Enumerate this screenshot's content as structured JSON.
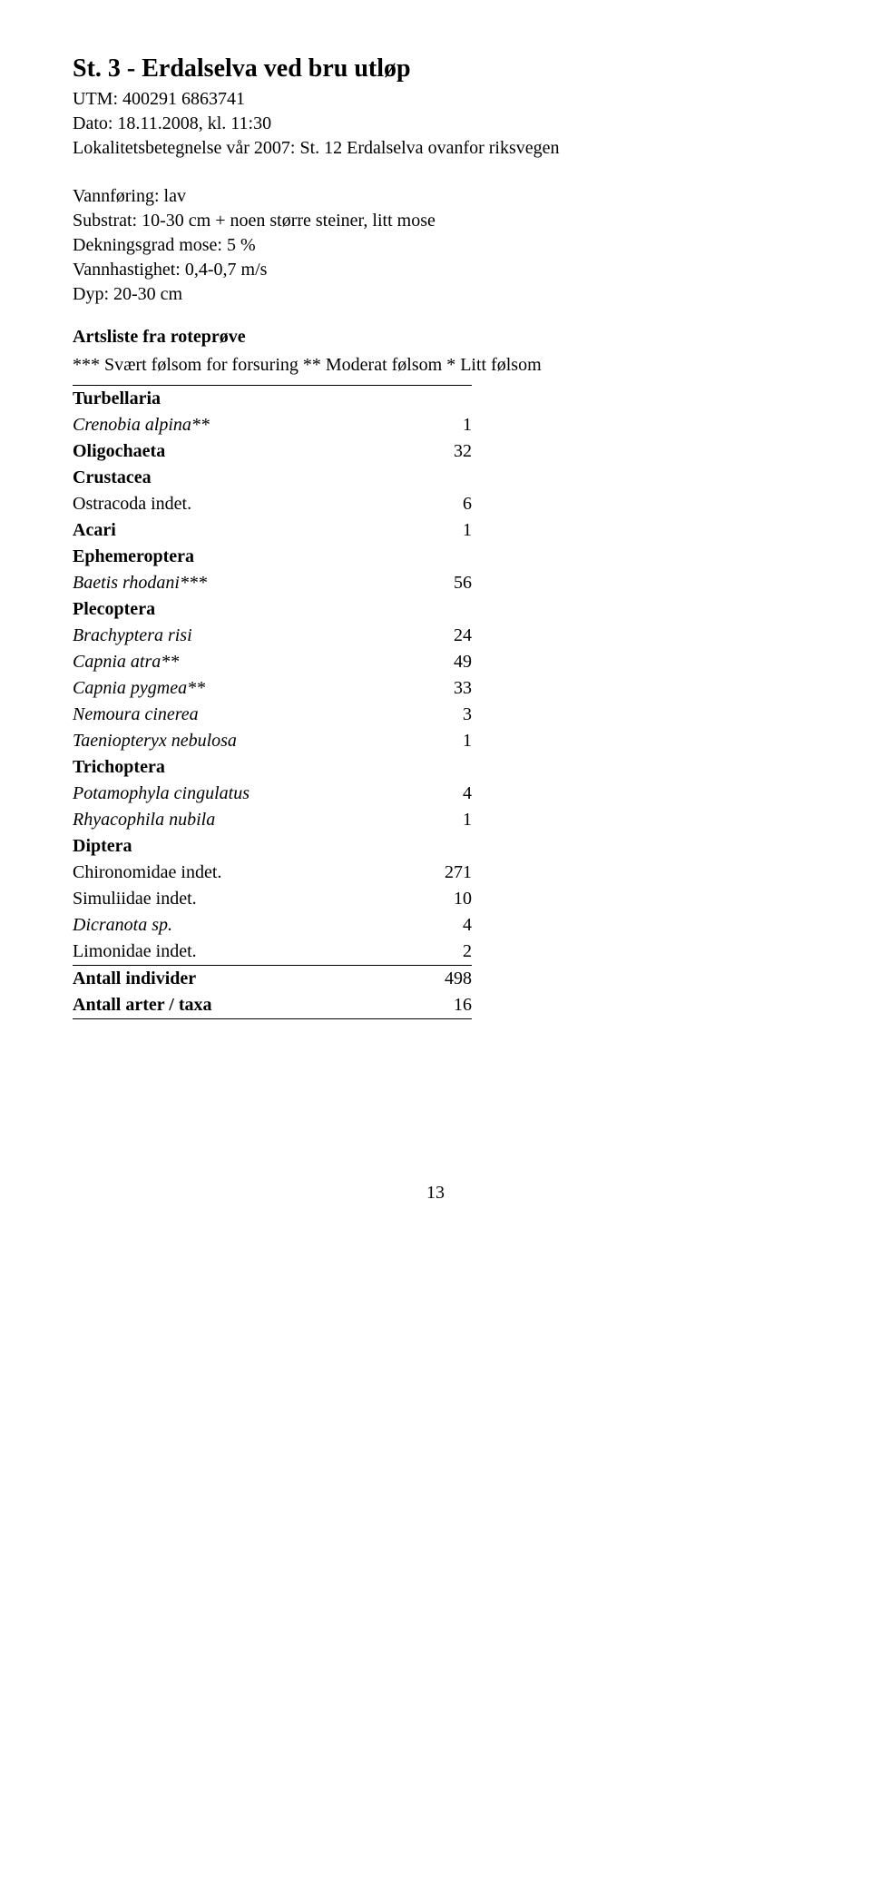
{
  "header": {
    "title": "St. 3 - Erdalselva ved bru utløp",
    "utm": "UTM: 400291  6863741",
    "dato": "Dato: 18.11.2008,  kl.  11:30",
    "lokalitet": "Lokalitetsbetegnelse vår 2007: St. 12 Erdalselva ovanfor riksvegen"
  },
  "params": {
    "vannforing": "Vannføring: lav",
    "substrat": "Substrat: 10-30 cm + noen større steiner, litt mose",
    "dekningsgrad": "Dekningsgrad mose: 5 %",
    "vannhastighet": "Vannhastighet: 0,4-0,7 m/s",
    "dyp": "Dyp: 20-30 cm"
  },
  "artsliste_heading": "Artsliste fra roteprøve",
  "legend": "*** Svært følsom for forsuring  ** Moderat følsom * Litt følsom",
  "table": {
    "rows": [
      {
        "label": "Turbellaria",
        "value": "",
        "bold": true,
        "italic": false,
        "rule_above": true
      },
      {
        "label": "Crenobia alpina**",
        "value": "1",
        "bold": false,
        "italic": true
      },
      {
        "label": "Oligochaeta",
        "value": "32",
        "bold": true,
        "italic": false
      },
      {
        "label": "Crustacea",
        "value": "",
        "bold": true,
        "italic": false
      },
      {
        "label": "Ostracoda indet.",
        "value": "6",
        "bold": false,
        "italic": false
      },
      {
        "label": "Acari",
        "value": "1",
        "bold": true,
        "italic": false
      },
      {
        "label": "Ephemeroptera",
        "value": "",
        "bold": true,
        "italic": false
      },
      {
        "label": "Baetis rhodani***",
        "value": "56",
        "bold": false,
        "italic": true
      },
      {
        "label": "Plecoptera",
        "value": "",
        "bold": true,
        "italic": false
      },
      {
        "label": "Brachyptera risi",
        "value": "24",
        "bold": false,
        "italic": true
      },
      {
        "label": "Capnia atra**",
        "value": "49",
        "bold": false,
        "italic": true
      },
      {
        "label": "Capnia pygmea**",
        "value": "33",
        "bold": false,
        "italic": true
      },
      {
        "label": "Nemoura cinerea",
        "value": "3",
        "bold": false,
        "italic": true
      },
      {
        "label": "Taeniopteryx nebulosa",
        "value": "1",
        "bold": false,
        "italic": true
      },
      {
        "label": "Trichoptera",
        "value": "",
        "bold": true,
        "italic": false
      },
      {
        "label": "Potamophyla cingulatus",
        "value": "4",
        "bold": false,
        "italic": true
      },
      {
        "label": "Rhyacophila nubila",
        "value": "1",
        "bold": false,
        "italic": true
      },
      {
        "label": "Diptera",
        "value": "",
        "bold": true,
        "italic": false
      },
      {
        "label": "Chironomidae indet.",
        "value": "271",
        "bold": false,
        "italic": false
      },
      {
        "label": "Simuliidae indet.",
        "value": "10",
        "bold": false,
        "italic": false
      },
      {
        "label": "Dicranota sp.",
        "value": "4",
        "bold": false,
        "italic": true
      },
      {
        "label": "Limonidae indet.",
        "value": "2",
        "bold": false,
        "italic": false,
        "rule_below": true
      },
      {
        "label": "Antall individer",
        "value": "498",
        "bold": true,
        "italic": false
      },
      {
        "label": "Antall arter / taxa",
        "value": "16",
        "bold": true,
        "italic": false,
        "rule_below": true
      }
    ]
  },
  "page_number": "13"
}
